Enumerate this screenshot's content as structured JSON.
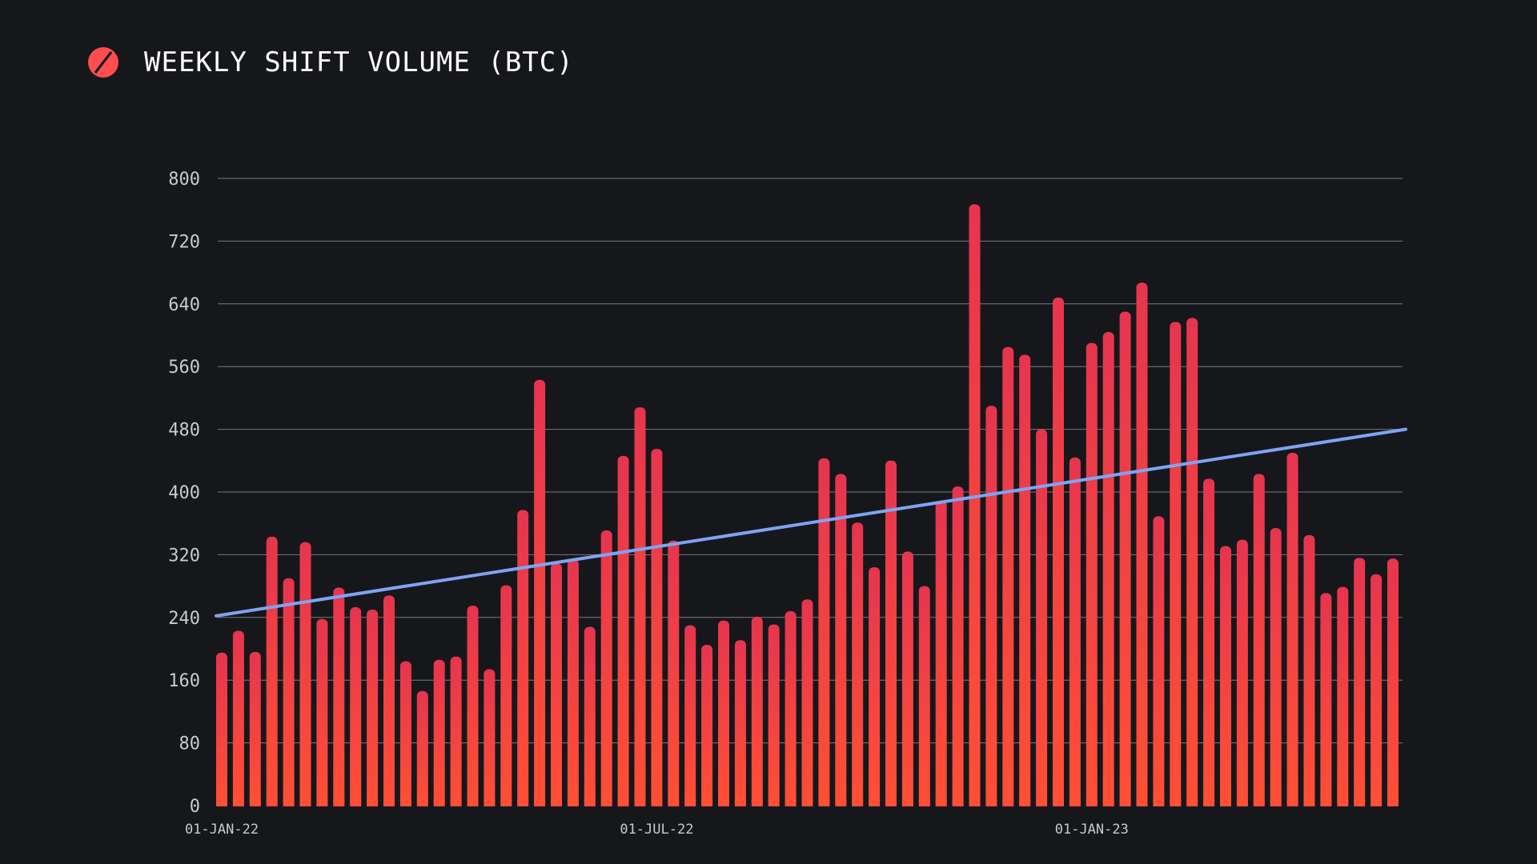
{
  "header": {
    "title": "WEEKLY SHIFT VOLUME (BTC)",
    "logo_icon": "slash-circle-icon"
  },
  "colors": {
    "background": "#16171b",
    "bar_top": "#e6354f",
    "bar_bottom": "#ff4f35",
    "trend_line": "#7fa3f3",
    "grid": "#8a8b90",
    "logo": "#ff4d50"
  },
  "chart_data": {
    "type": "bar",
    "title": "WEEKLY SHIFT VOLUME (BTC)",
    "xlabel": "",
    "ylabel": "",
    "ylim": [
      0,
      800
    ],
    "yticks": [
      0,
      80,
      160,
      240,
      320,
      400,
      480,
      560,
      640,
      720,
      800
    ],
    "xtick_labels": [
      {
        "label": "01-JAN-22",
        "index": 0
      },
      {
        "label": "01-JUL-22",
        "index": 26
      },
      {
        "label": "01-JAN-23",
        "index": 52
      }
    ],
    "grid": true,
    "legend": "none",
    "values": [
      195,
      223,
      196,
      343,
      290,
      336,
      238,
      278,
      253,
      250,
      268,
      184,
      146,
      186,
      190,
      255,
      174,
      281,
      377,
      543,
      309,
      314,
      228,
      351,
      446,
      508,
      455,
      338,
      230,
      205,
      236,
      211,
      241,
      231,
      248,
      263,
      443,
      423,
      361,
      304,
      440,
      324,
      280,
      389,
      407,
      767,
      510,
      585,
      575,
      480,
      648,
      444,
      590,
      604,
      630,
      667,
      369,
      617,
      622,
      417,
      331,
      339,
      423,
      354,
      450,
      345,
      271,
      279,
      316,
      295,
      315
    ],
    "trend": {
      "start": 242,
      "end": 480
    }
  }
}
